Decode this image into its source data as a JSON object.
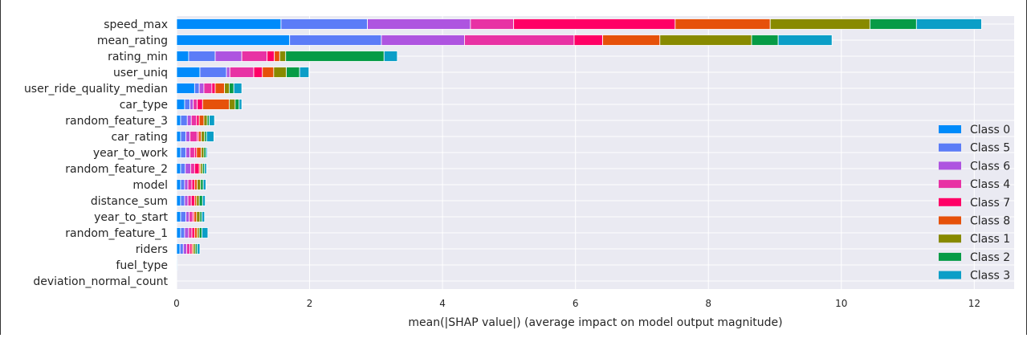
{
  "chart_data": {
    "type": "bar",
    "stacked": true,
    "orientation": "horizontal",
    "xlabel": "mean(|SHAP value|) (average impact on model output magnitude)",
    "xlim": [
      0,
      12.6
    ],
    "xticks": [
      0,
      2,
      4,
      6,
      8,
      10,
      12
    ],
    "grid": true,
    "legend_position": "right",
    "categories": [
      "speed_max",
      "mean_rating",
      "rating_min",
      "user_uniq",
      "user_ride_quality_median",
      "car_type",
      "random_feature_3",
      "car_rating",
      "year_to_work",
      "random_feature_2",
      "model",
      "distance_sum",
      "year_to_start",
      "random_feature_1",
      "riders",
      "fuel_type",
      "deviation_normal_count"
    ],
    "series": [
      {
        "name": "Class 0",
        "color": "#008bfb",
        "values": [
          1.57,
          1.7,
          0.18,
          0.35,
          0.27,
          0.12,
          0.06,
          0.06,
          0.06,
          0.06,
          0.06,
          0.06,
          0.06,
          0.06,
          0.05,
          0.01,
          0.0
        ]
      },
      {
        "name": "Class 5",
        "color": "#5b7cf7",
        "values": [
          1.3,
          1.38,
          0.4,
          0.4,
          0.07,
          0.08,
          0.1,
          0.08,
          0.08,
          0.07,
          0.06,
          0.06,
          0.08,
          0.06,
          0.05,
          0.0,
          0.0
        ]
      },
      {
        "name": "Class 6",
        "color": "#ae54e0",
        "values": [
          1.55,
          1.25,
          0.4,
          0.05,
          0.07,
          0.05,
          0.06,
          0.06,
          0.06,
          0.08,
          0.05,
          0.05,
          0.05,
          0.06,
          0.05,
          0.0,
          0.0
        ]
      },
      {
        "name": "Class 4",
        "color": "#e832a4",
        "values": [
          0.65,
          1.65,
          0.38,
          0.36,
          0.12,
          0.06,
          0.08,
          0.11,
          0.07,
          0.06,
          0.06,
          0.05,
          0.05,
          0.05,
          0.05,
          0.0,
          0.0
        ]
      },
      {
        "name": "Class 7",
        "color": "#ff0066",
        "values": [
          2.43,
          0.43,
          0.11,
          0.13,
          0.05,
          0.08,
          0.04,
          0.02,
          0.03,
          0.07,
          0.04,
          0.05,
          0.02,
          0.04,
          0.03,
          0.0,
          0.0
        ]
      },
      {
        "name": "Class 8",
        "color": "#e6510a",
        "values": [
          1.43,
          0.86,
          0.08,
          0.17,
          0.14,
          0.4,
          0.07,
          0.04,
          0.07,
          0.02,
          0.04,
          0.03,
          0.04,
          0.04,
          0.02,
          0.0,
          0.0
        ]
      },
      {
        "name": "Class 1",
        "color": "#888a00",
        "values": [
          1.5,
          1.38,
          0.09,
          0.19,
          0.07,
          0.09,
          0.05,
          0.05,
          0.04,
          0.03,
          0.05,
          0.04,
          0.05,
          0.03,
          0.03,
          0.0,
          0.0
        ]
      },
      {
        "name": "Class 2",
        "color": "#069b46",
        "values": [
          0.7,
          0.4,
          1.48,
          0.2,
          0.07,
          0.06,
          0.03,
          0.03,
          0.03,
          0.03,
          0.04,
          0.05,
          0.03,
          0.04,
          0.03,
          0.0,
          0.0
        ]
      },
      {
        "name": "Class 3",
        "color": "#0b9ec7",
        "values": [
          0.98,
          0.81,
          0.2,
          0.14,
          0.12,
          0.04,
          0.08,
          0.11,
          0.02,
          0.03,
          0.04,
          0.04,
          0.04,
          0.09,
          0.04,
          0.0,
          0.0
        ]
      }
    ],
    "legend_order": [
      "Class 0",
      "Class 5",
      "Class 6",
      "Class 4",
      "Class 7",
      "Class 8",
      "Class 1",
      "Class 2",
      "Class 3"
    ]
  }
}
